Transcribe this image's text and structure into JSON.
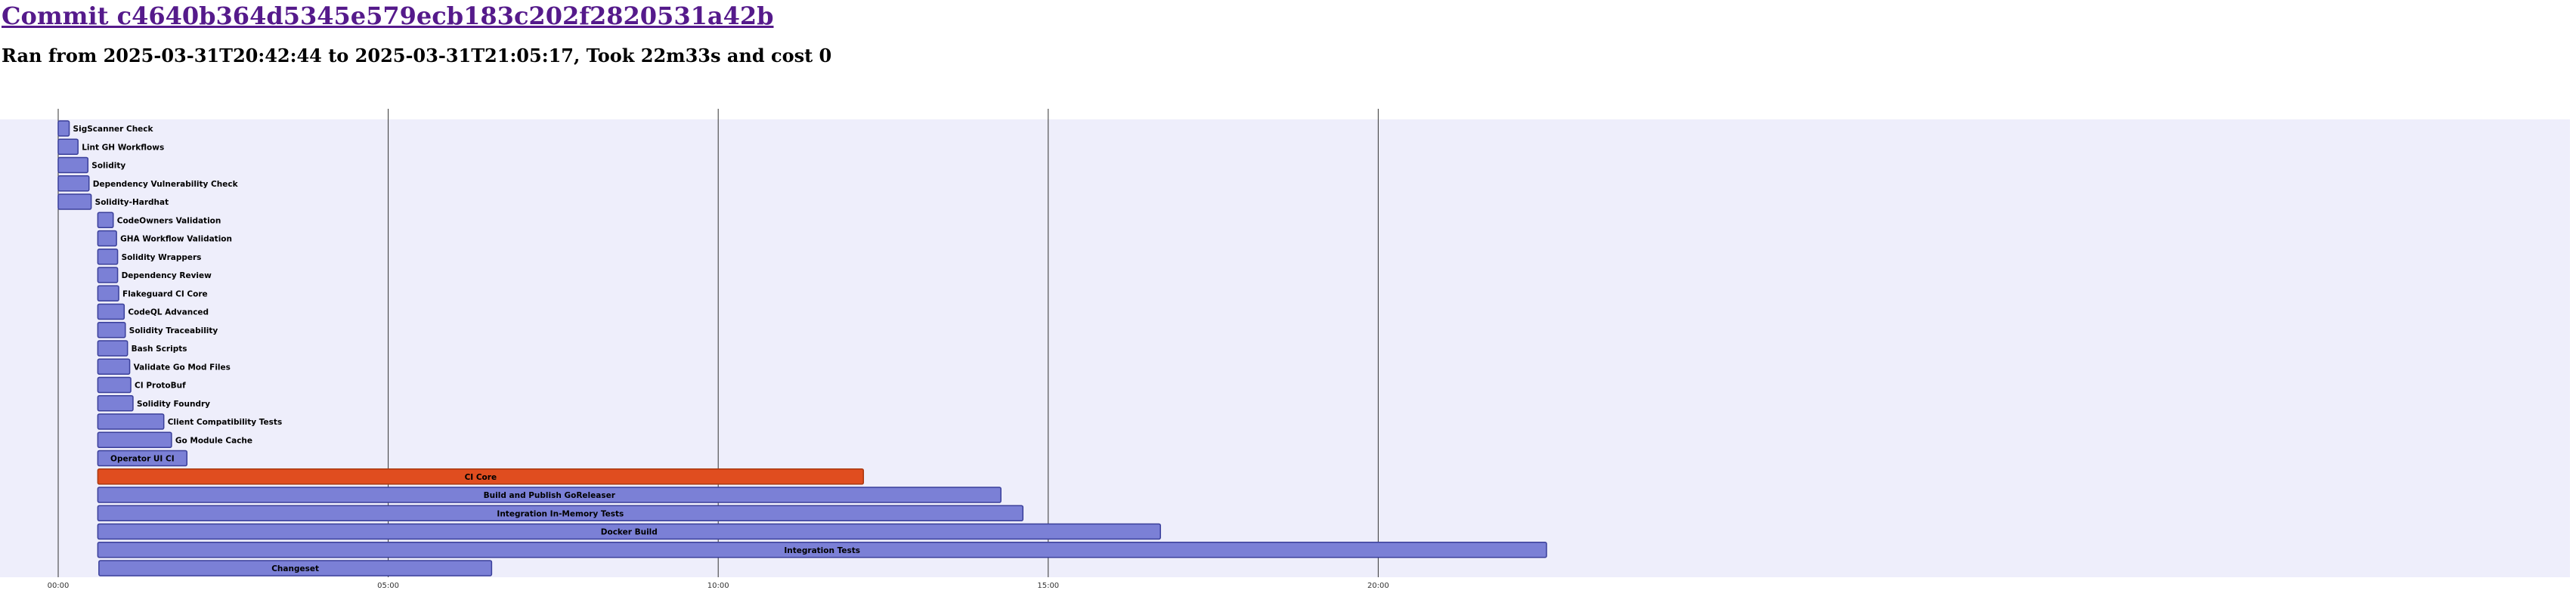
{
  "header": {
    "commit_title": "Commit c4640b364d5345e579ecb183c202f2820531a42b",
    "run_summary": "Ran from 2025-03-31T20:42:44 to 2025-03-31T21:05:17, Took 22m33s and cost 0"
  },
  "colors": {
    "background": "#eeeefb",
    "bar_fill": "#7b80d6",
    "bar_stroke": "#3a3f9a",
    "failed_fill": "#e04d1f",
    "failed_stroke": "#a9380f",
    "grid": "#333333"
  },
  "chart_data": {
    "type": "gantt",
    "x_unit": "seconds since run start",
    "xlim": [
      -30,
      1370
    ],
    "x_ticks": [
      {
        "value": 0,
        "label": "00:00"
      },
      {
        "value": 300,
        "label": "05:00"
      },
      {
        "value": 600,
        "label": "10:00"
      },
      {
        "value": 900,
        "label": "15:00"
      },
      {
        "value": 1200,
        "label": "20:00"
      }
    ],
    "grid": true,
    "jobs": [
      {
        "name": "SigScanner Check",
        "start": 0,
        "end": 10,
        "status": "success"
      },
      {
        "name": "Lint GH Workflows",
        "start": 0,
        "end": 18,
        "status": "success"
      },
      {
        "name": "Solidity",
        "start": 0,
        "end": 27,
        "status": "success"
      },
      {
        "name": "Dependency Vulnerability Check",
        "start": 0,
        "end": 28,
        "status": "success"
      },
      {
        "name": "Solidity-Hardhat",
        "start": 0,
        "end": 30,
        "status": "success"
      },
      {
        "name": "CodeOwners Validation",
        "start": 36,
        "end": 50,
        "status": "success"
      },
      {
        "name": "GHA Workflow Validation",
        "start": 36,
        "end": 53,
        "status": "success"
      },
      {
        "name": "Solidity Wrappers",
        "start": 36,
        "end": 54,
        "status": "success"
      },
      {
        "name": "Dependency Review",
        "start": 36,
        "end": 54,
        "status": "success"
      },
      {
        "name": "Flakeguard CI Core",
        "start": 36,
        "end": 55,
        "status": "success"
      },
      {
        "name": "CodeQL Advanced",
        "start": 36,
        "end": 60,
        "status": "success"
      },
      {
        "name": "Solidity Traceability",
        "start": 36,
        "end": 61,
        "status": "success"
      },
      {
        "name": "Bash Scripts",
        "start": 36,
        "end": 63,
        "status": "success"
      },
      {
        "name": "Validate Go Mod Files",
        "start": 36,
        "end": 65,
        "status": "success"
      },
      {
        "name": "CI ProtoBuf",
        "start": 36,
        "end": 66,
        "status": "success"
      },
      {
        "name": "Solidity Foundry",
        "start": 36,
        "end": 68,
        "status": "success"
      },
      {
        "name": "Client Compatibility Tests",
        "start": 36,
        "end": 96,
        "status": "success"
      },
      {
        "name": "Go Module Cache",
        "start": 36,
        "end": 103,
        "status": "success"
      },
      {
        "name": "Operator UI CI",
        "start": 36,
        "end": 117,
        "status": "success"
      },
      {
        "name": "CI Core",
        "start": 36,
        "end": 732,
        "status": "failure"
      },
      {
        "name": "Build and Publish GoReleaser",
        "start": 36,
        "end": 857,
        "status": "success"
      },
      {
        "name": "Integration In-Memory Tests",
        "start": 36,
        "end": 877,
        "status": "success"
      },
      {
        "name": "Docker Build",
        "start": 36,
        "end": 1002,
        "status": "success"
      },
      {
        "name": "Integration Tests",
        "start": 36,
        "end": 1353,
        "status": "success"
      },
      {
        "name": "Changeset",
        "start": 37,
        "end": 394,
        "status": "success"
      }
    ]
  }
}
